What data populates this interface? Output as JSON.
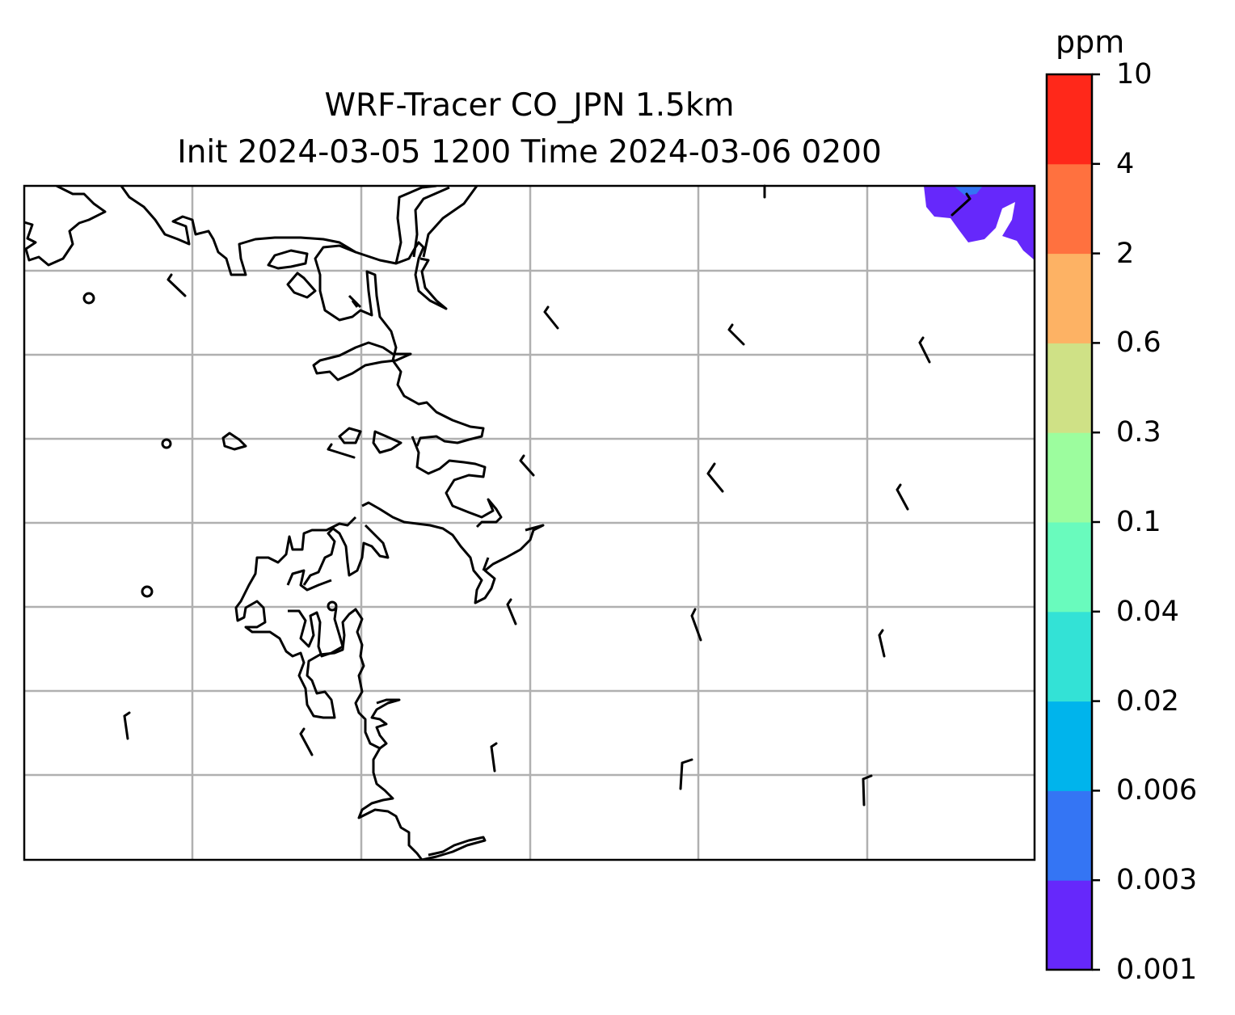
{
  "title": {
    "line1": "WRF-Tracer CO_JPN 1.5km",
    "line2": "Init 2024-03-05 1200 Time 2024-03-06 0200"
  },
  "colorbar": {
    "unit": "ppm",
    "levels": [
      "0.001",
      "0.003",
      "0.006",
      "0.02",
      "0.04",
      "0.1",
      "0.3",
      "0.6",
      "2",
      "4",
      "10"
    ],
    "colors": [
      "#6628fb",
      "#3475f4",
      "#00b4ec",
      "#33e2d6",
      "#69fbbd",
      "#9cfd9e",
      "#cfe186",
      "#fdb264",
      "#ff713f",
      "#ff281a"
    ]
  },
  "map": {
    "gridlines": true,
    "frame_color": "#000000",
    "grid_color": "#b0b0b0",
    "coastline_color": "#000000"
  }
}
